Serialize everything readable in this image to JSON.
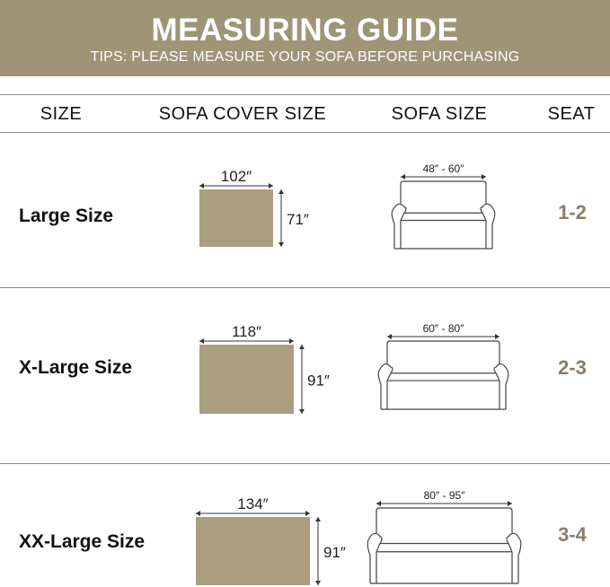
{
  "banner": {
    "title": "MEASURING GUIDE",
    "subtitle": "TIPS: PLEASE MEASURE YOUR SOFA BEFORE PURCHASING"
  },
  "columns": [
    "SIZE",
    "SOFA COVER SIZE",
    "SOFA SIZE",
    "SEAT"
  ],
  "rows": [
    {
      "size": "Large Size",
      "cover_width": "102″",
      "cover_height": "71″",
      "sofa_size": "48″ - 60″",
      "seat": "1-2"
    },
    {
      "size": "X-Large Size",
      "cover_width": "118″",
      "cover_height": "91″",
      "sofa_size": "60″ - 80″",
      "seat": "2-3"
    },
    {
      "size": "XX-Large Size",
      "cover_width": "134″",
      "cover_height": "91″",
      "sofa_size": "80″ - 95″",
      "seat": "3-4"
    }
  ],
  "colors": {
    "banner": "#a09477",
    "cover": "#ab9e80",
    "seat_text": "#8a7e66"
  }
}
